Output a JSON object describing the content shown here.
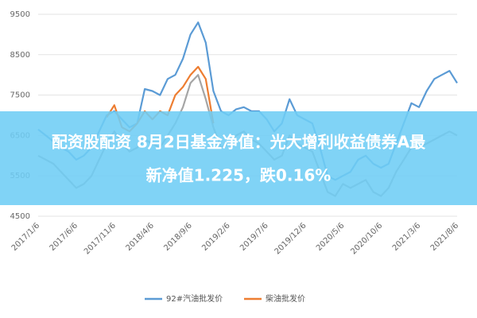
{
  "chart_data": {
    "type": "line",
    "overlay_text": [
      "配资股配资 8月2日基金净值：光大增利收益债券A最",
      "新净值1.225，跌0.16%"
    ],
    "categories": [
      "2017/1/6",
      null,
      null,
      null,
      null,
      "2017/6/6",
      null,
      null,
      null,
      null,
      "2017/11/6",
      null,
      null,
      null,
      null,
      "2018/4/6",
      null,
      null,
      null,
      null,
      "2018/9/6",
      null,
      null,
      null,
      null,
      "2019/2/6",
      null,
      null,
      null,
      null,
      "2019/7/6",
      null,
      null,
      null,
      null,
      "2019/12/6",
      null,
      null,
      null,
      null,
      "2020/5/6",
      null,
      null,
      null,
      null,
      "2020/10/6",
      null,
      null,
      null,
      null,
      "2021/3/6",
      null,
      null,
      null,
      null,
      "2021/8/6"
    ],
    "series": [
      {
        "color": "#a5a5a5",
        "values": [
          6000,
          5900,
          5800,
          5600,
          5400,
          5200,
          5300,
          5500,
          5900,
          6300,
          6600,
          6300,
          6100,
          6200,
          6400,
          6300,
          6200,
          6500,
          6800,
          7200,
          7800,
          8000,
          7400,
          6700,
          6200,
          6300,
          6500,
          6600,
          6400,
          6300,
          6100,
          5900,
          6000,
          6500,
          6300,
          6200,
          6100,
          5600,
          5100,
          5000,
          5300,
          5200,
          5300,
          5400,
          5100,
          5000,
          5200,
          5600,
          5900,
          6200,
          6200,
          6300,
          6400,
          6500,
          6600,
          6500
        ]
      },
      {
        "name": "92#汽油批发价",
        "color": "#5b9bd5",
        "values": [
          6650,
          6500,
          6350,
          6200,
          6100,
          5900,
          6000,
          6200,
          6600,
          7000,
          7100,
          6900,
          6700,
          6800,
          7650,
          7600,
          7500,
          7900,
          8000,
          8400,
          9000,
          9300,
          8800,
          7600,
          7100,
          7000,
          7150,
          7200,
          7100,
          7100,
          6900,
          6600,
          6800,
          7400,
          7000,
          6900,
          6800,
          6200,
          5500,
          5400,
          5500,
          5600,
          5900,
          6000,
          5800,
          5700,
          5800,
          6300,
          6800,
          7300,
          7200,
          7600,
          7900,
          8000,
          8100,
          7800
        ]
      },
      {
        "name": "柴油批发价",
        "color": "#ed7d31",
        "values": [
          null,
          null,
          null,
          null,
          null,
          null,
          null,
          null,
          null,
          6950,
          7250,
          6700,
          6600,
          6800,
          7100,
          6900,
          7100,
          7000,
          7500,
          7700,
          8000,
          8200,
          7900,
          6800,
          null,
          null,
          null,
          null,
          null,
          null,
          null,
          null,
          null,
          null,
          null,
          null,
          null,
          null,
          null,
          null,
          null,
          null,
          null,
          null,
          null,
          null,
          null,
          null,
          null,
          null,
          null,
          null,
          null,
          null,
          null,
          null
        ]
      }
    ],
    "ylim": [
      4500,
      9500
    ],
    "yticks": [
      4500,
      5500,
      6500,
      7500,
      8500,
      9500
    ],
    "grid": true
  }
}
